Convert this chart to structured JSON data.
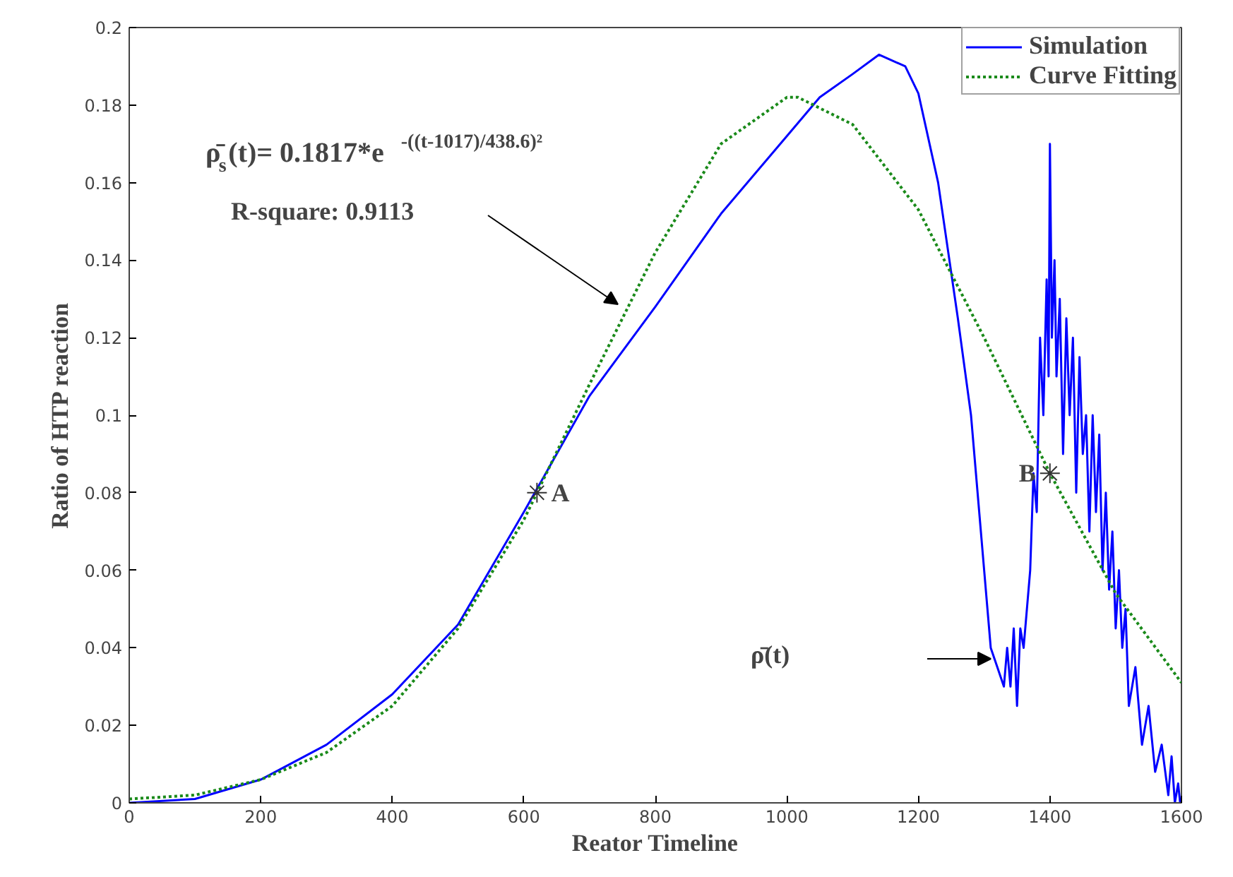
{
  "chart_data": {
    "type": "line",
    "xlabel": "Reator Timeline",
    "ylabel": "Ratio of HTP reaction",
    "xlim": [
      0,
      1600
    ],
    "ylim": [
      0,
      0.2
    ],
    "xticks": [
      0,
      200,
      400,
      600,
      800,
      1000,
      1200,
      1400,
      1600
    ],
    "yticks": [
      0,
      0.02,
      0.04,
      0.06,
      0.08,
      0.1,
      0.12,
      0.14,
      0.16,
      0.18,
      0.2
    ],
    "legend": "top right",
    "grid": false,
    "series": [
      {
        "name": "Simulation",
        "color": "#0000ff",
        "line_style": "solid",
        "x": [
          0,
          100,
          200,
          300,
          400,
          500,
          600,
          700,
          800,
          900,
          1000,
          1050,
          1100,
          1140,
          1180,
          1200,
          1230,
          1260,
          1280,
          1300,
          1310,
          1320,
          1330,
          1335,
          1340,
          1345,
          1350,
          1355,
          1360,
          1370,
          1375,
          1380,
          1385,
          1390,
          1395,
          1398,
          1400,
          1403,
          1407,
          1410,
          1415,
          1420,
          1425,
          1430,
          1435,
          1440,
          1445,
          1450,
          1455,
          1460,
          1465,
          1470,
          1475,
          1480,
          1485,
          1490,
          1495,
          1500,
          1505,
          1510,
          1515,
          1520,
          1530,
          1540,
          1550,
          1560,
          1570,
          1580,
          1585,
          1590,
          1595,
          1598
        ],
        "values": [
          0,
          0.001,
          0.006,
          0.015,
          0.028,
          0.046,
          0.075,
          0.105,
          0.128,
          0.152,
          0.172,
          0.182,
          0.188,
          0.193,
          0.19,
          0.183,
          0.16,
          0.125,
          0.1,
          0.06,
          0.04,
          0.035,
          0.03,
          0.04,
          0.03,
          0.045,
          0.025,
          0.045,
          0.04,
          0.06,
          0.085,
          0.075,
          0.12,
          0.1,
          0.135,
          0.11,
          0.17,
          0.12,
          0.14,
          0.11,
          0.13,
          0.09,
          0.125,
          0.1,
          0.12,
          0.08,
          0.115,
          0.09,
          0.1,
          0.07,
          0.1,
          0.075,
          0.095,
          0.06,
          0.08,
          0.055,
          0.07,
          0.045,
          0.06,
          0.04,
          0.05,
          0.025,
          0.035,
          0.015,
          0.025,
          0.008,
          0.015,
          0.002,
          0.012,
          0,
          0.005,
          0
        ]
      },
      {
        "name": "Curve Fitting",
        "color": "#1a8a1a",
        "line_style": "dotted",
        "x": [
          0,
          100,
          200,
          300,
          400,
          500,
          600,
          700,
          800,
          900,
          1000,
          1017,
          1100,
          1200,
          1300,
          1400,
          1500,
          1600
        ],
        "values": [
          0.001,
          0.002,
          0.006,
          0.013,
          0.025,
          0.045,
          0.073,
          0.108,
          0.142,
          0.17,
          0.182,
          0.182,
          0.175,
          0.153,
          0.12,
          0.085,
          0.054,
          0.031
        ]
      }
    ],
    "annotations": [
      "ρ̄$_{s}$(t)= 0.1817*e$^{-((t-1017)/438.6)²}$",
      "R-square: 0.9113",
      {
        "text": "A",
        "x": 620,
        "y": 0.08
      },
      {
        "text": "B",
        "x": 1400,
        "y": 0.085
      },
      "ρ̄(t)"
    ]
  }
}
